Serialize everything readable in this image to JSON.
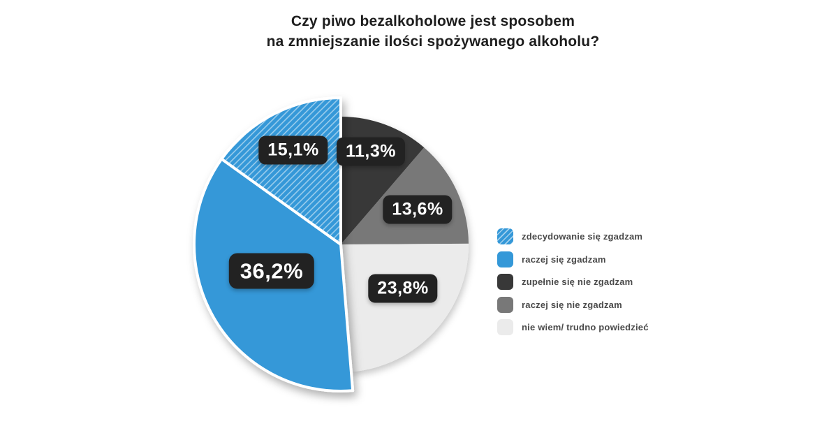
{
  "title": {
    "line1": "Czy piwo bezalkoholowe jest sposobem",
    "line2": "na zmniejszanie ilości spożywanego alkoholu?"
  },
  "colors": {
    "background": "#ffffff",
    "title_text": "#1d1d1d",
    "legend_text": "#4a4a4a",
    "badge_background": "#222222",
    "badge_text": "#ffffff",
    "accent_blue": "#3498d8",
    "dark_gray": "#383838",
    "mid_gray": "#787878",
    "light_gray": "#ebebeb",
    "hatch_stripe": "rgba(255,255,255,0.5)"
  },
  "chart_data": {
    "type": "pie",
    "title": "Czy piwo bezalkoholowe jest sposobem na zmniejszanie ilości spożywanego alkoholu?",
    "unit": "percent",
    "start_angle_deg": 0,
    "direction": "clockwise",
    "legend_position": "right",
    "slices": [
      {
        "id": "zupelnie-sie-nie-zgadzam",
        "label": "zupełnie się nie zgadzam",
        "value": 11.3,
        "display": "11,3%",
        "color": "#383838",
        "hatch": false,
        "emphasized": false
      },
      {
        "id": "raczej-sie-nie-zgadzam",
        "label": "raczej się nie zgadzam",
        "value": 13.6,
        "display": "13,6%",
        "color": "#787878",
        "hatch": false,
        "emphasized": false
      },
      {
        "id": "nie-wiem-trudno-powiedziec",
        "label": "nie wiem/ trudno powiedzieć",
        "value": 23.8,
        "display": "23,8%",
        "color": "#ebebeb",
        "hatch": false,
        "emphasized": false
      },
      {
        "id": "raczej-sie-zgadzam",
        "label": "raczej się zgadzam",
        "value": 36.2,
        "display": "36,2%",
        "color": "#3498d8",
        "hatch": false,
        "emphasized": true
      },
      {
        "id": "zdecydowanie-sie-zgadzam",
        "label": "zdecydowanie się zgadzam",
        "value": 15.1,
        "display": "15,1%",
        "color": "#3498d8",
        "hatch": true,
        "emphasized": true
      }
    ],
    "legend_order": [
      4,
      3,
      0,
      1,
      2
    ]
  }
}
